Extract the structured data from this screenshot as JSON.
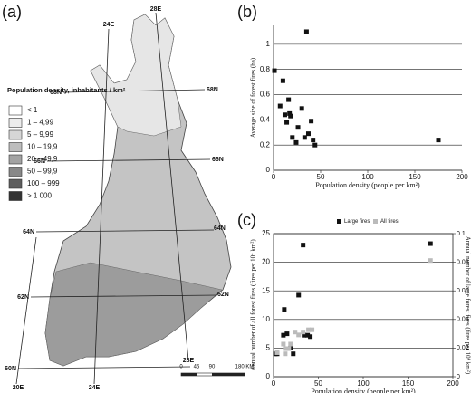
{
  "map": {
    "label": "(a)",
    "legend_title": "Population density, inhabitants / km²",
    "legend": [
      {
        "label": "< 1",
        "color": "#ffffff"
      },
      {
        "label": "1 – 4,99",
        "color": "#ececec"
      },
      {
        "label": "5 – 9,99",
        "color": "#d6d6d6"
      },
      {
        "label": "10 – 19,9",
        "color": "#bdbdbd"
      },
      {
        "label": "20 – 49,9",
        "color": "#a3a3a3"
      },
      {
        "label": "50 – 99,9",
        "color": "#888888"
      },
      {
        "label": "100 – 999",
        "color": "#5e5e5e"
      },
      {
        "label": "> 1 000",
        "color": "#333333"
      }
    ],
    "grid_labels": [
      "24E",
      "28E",
      "68N",
      "68N",
      "66N",
      "66N",
      "64N",
      "64N",
      "62N",
      "62N",
      "60N",
      "20E",
      "24E",
      "28E"
    ],
    "scale": {
      "ticks": [
        0,
        45,
        90
      ],
      "end": "180 KM"
    }
  },
  "chart_data": [
    {
      "type": "scatter",
      "label": "(b)",
      "ylabel": "Average size of forest fires (ha)",
      "xlabel": "Population density (people per km²)",
      "xlim": [
        0,
        200
      ],
      "xticks": [
        0,
        50,
        100,
        150,
        200
      ],
      "ylim": [
        0,
        1.15
      ],
      "yticks": [
        0,
        0.2,
        0.4,
        0.6,
        0.8,
        1
      ],
      "grid": true,
      "frame": false,
      "series": [
        {
          "color": "#111111",
          "marker": "square",
          "x": [
            1,
            10,
            7,
            12,
            16,
            17,
            14,
            18,
            20,
            26,
            24,
            30,
            35,
            33,
            37,
            40,
            42,
            44,
            175
          ],
          "values": [
            0.79,
            0.71,
            0.51,
            0.44,
            0.56,
            0.45,
            0.38,
            0.43,
            0.26,
            0.34,
            0.22,
            0.49,
            1.1,
            0.26,
            0.29,
            0.39,
            0.24,
            0.2,
            0.24
          ]
        }
      ]
    },
    {
      "type": "scatter",
      "label": "(c)",
      "ylabel": "Annual number of all forest fires (fires per 10⁴ km²)",
      "y2label": "Annual number of large forest fires (fires per 10⁴ km²)",
      "xlabel": "Population density (people per km²)",
      "xlim": [
        0,
        200
      ],
      "xticks": [
        0,
        50,
        100,
        150,
        200
      ],
      "ylim": [
        0,
        25
      ],
      "yticks": [
        0,
        5,
        10,
        15,
        20,
        25
      ],
      "y2lim": [
        0,
        0.1
      ],
      "y2ticks": [
        0,
        0.02,
        0.04,
        0.06,
        0.08,
        0.1
      ],
      "grid": true,
      "frame": true,
      "series": [
        {
          "name": "Large fires",
          "color": "#111111",
          "marker": "square",
          "axis": "y2",
          "x": [
            2,
            4,
            12,
            11,
            15,
            19,
            22,
            28,
            33,
            34,
            38,
            41,
            175
          ],
          "values": [
            0.016,
            0.016,
            0.047,
            0.029,
            0.03,
            0.02,
            0.016,
            0.057,
            0.092,
            0.029,
            0.029,
            0.028,
            0.093
          ]
        },
        {
          "name": "All fires",
          "color": "#bbbbbb",
          "marker": "square",
          "x": [
            4,
            11,
            13,
            17,
            19,
            24,
            28,
            33,
            39,
            43,
            13,
            175
          ],
          "values": [
            4.2,
            5.7,
            4.9,
            4.9,
            5.7,
            7.8,
            7.3,
            7.8,
            8.2,
            8.2,
            4.0,
            20.3
          ]
        }
      ]
    }
  ]
}
